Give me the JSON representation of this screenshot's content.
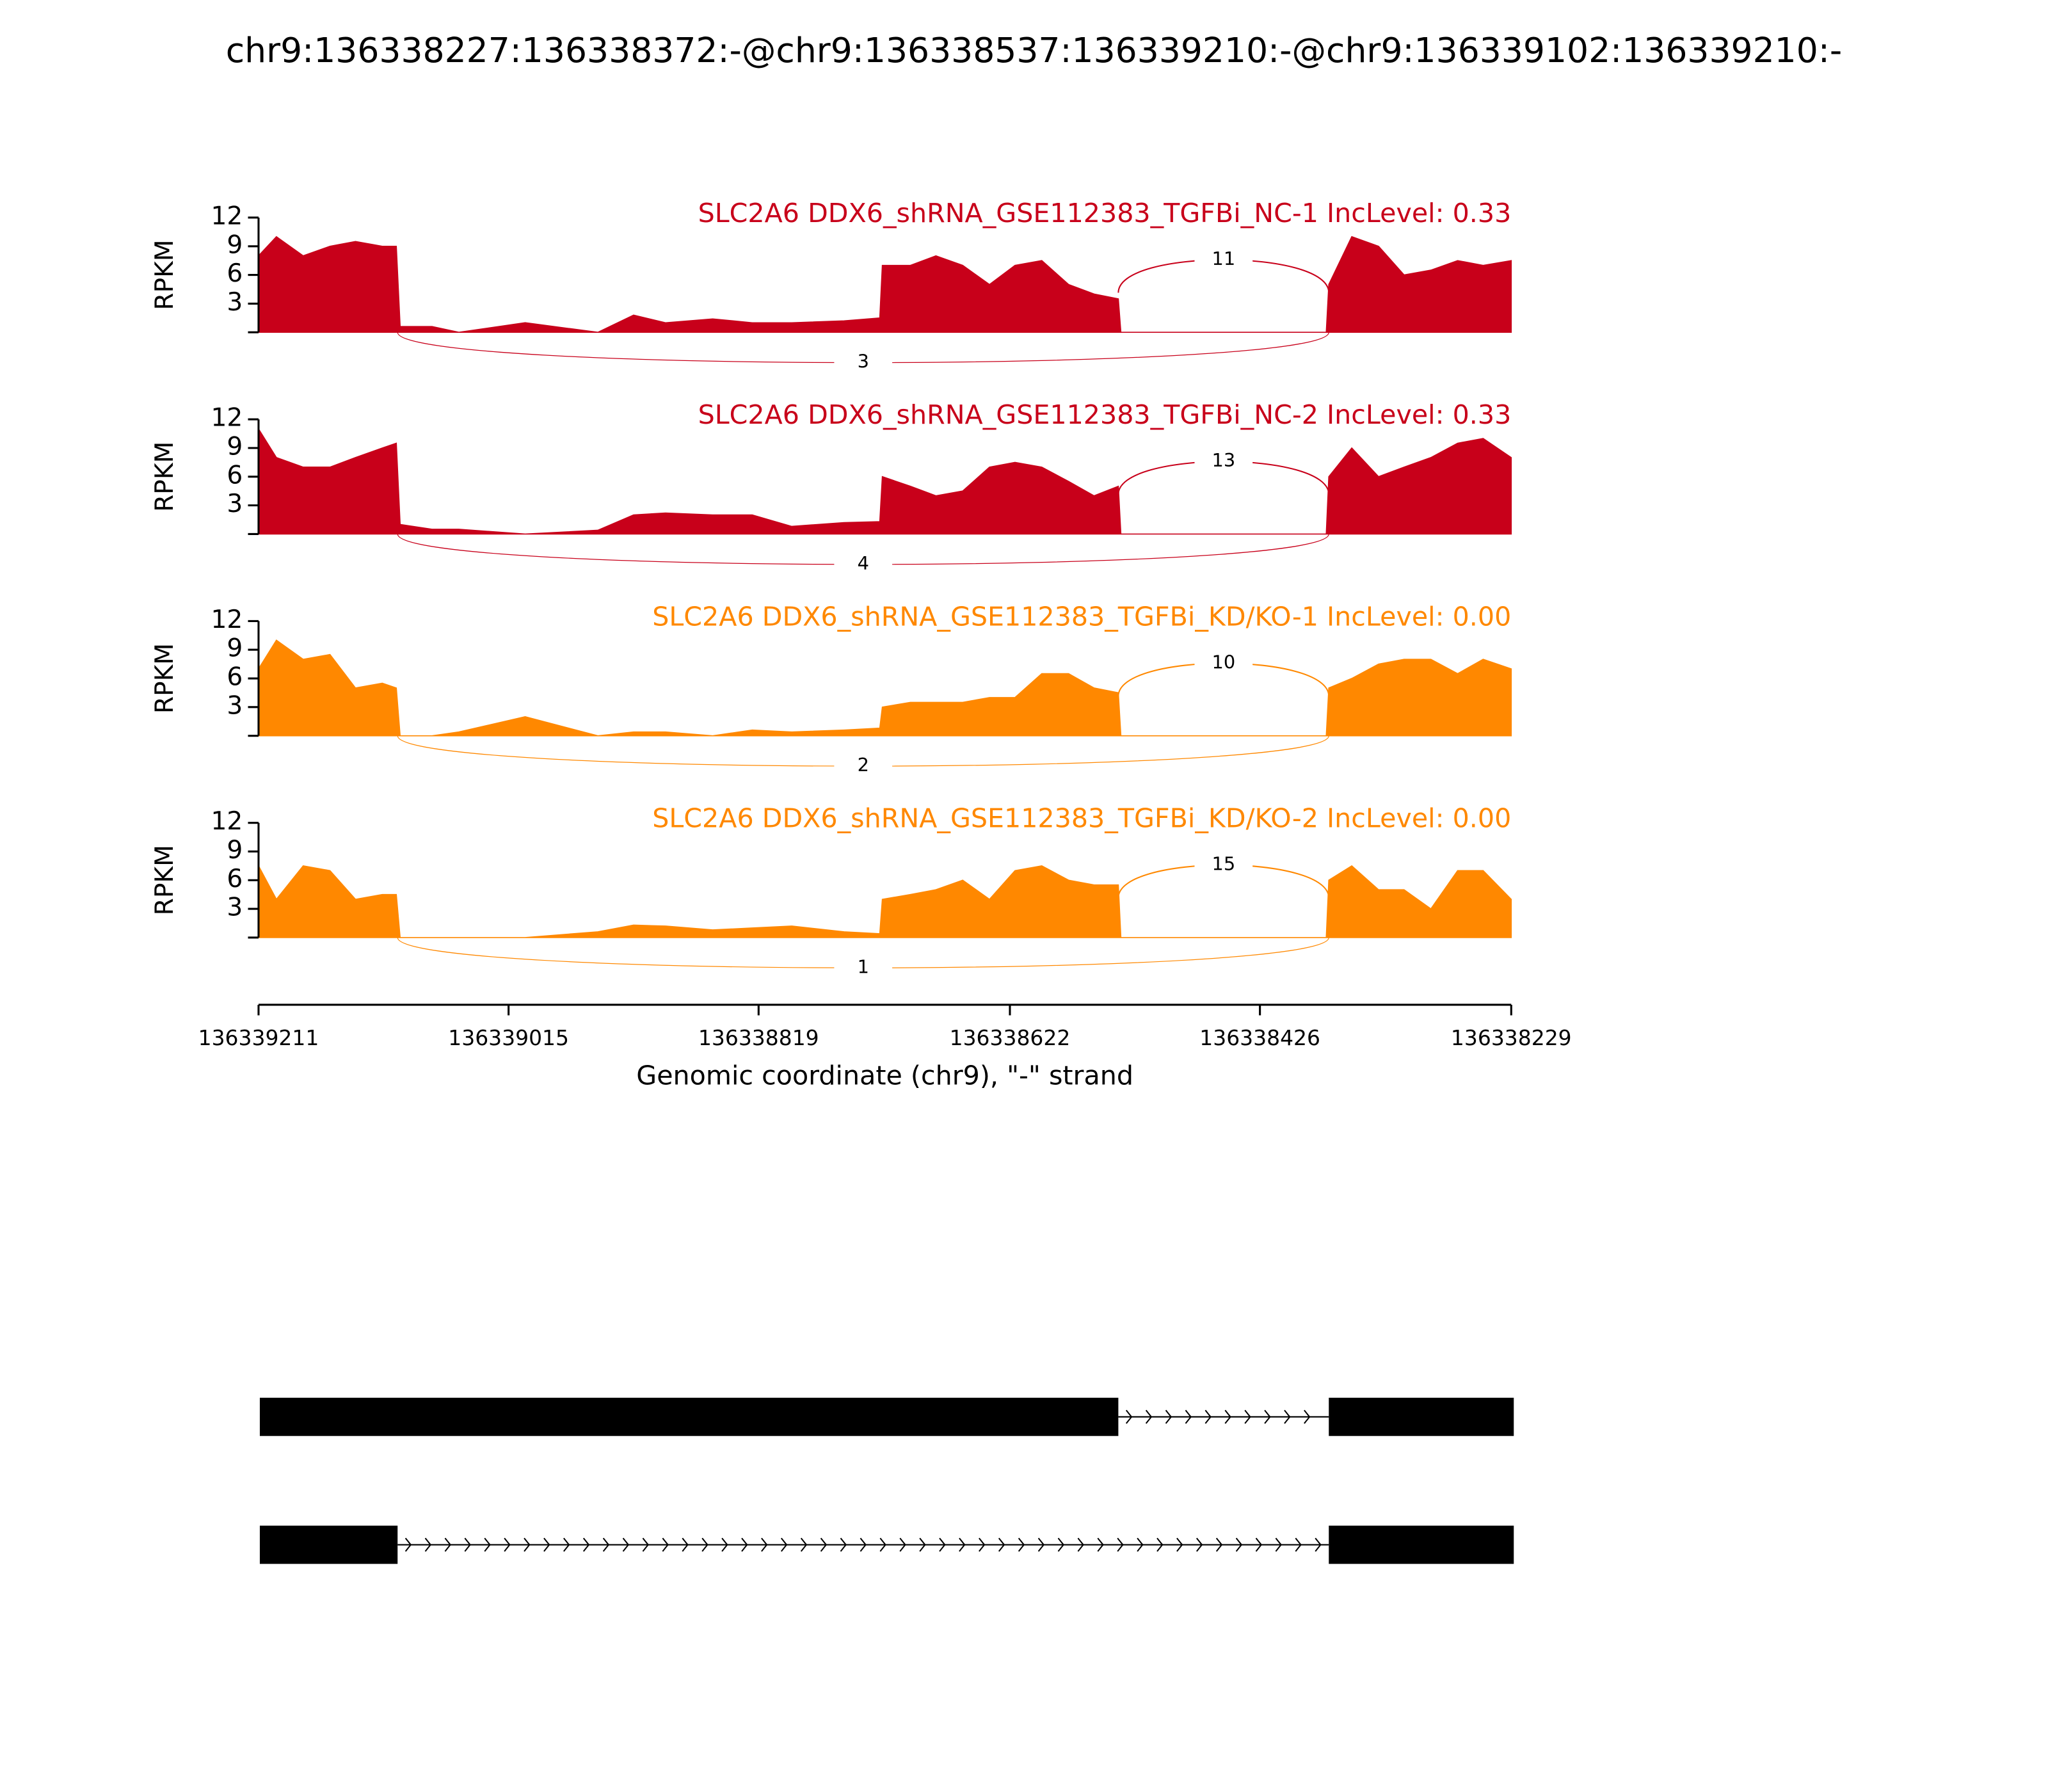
{
  "title": "chr9:136338227:136338372:-@chr9:136338537:136339210:-@chr9:136339102:136339210:-",
  "chart_data": [
    {
      "type": "area",
      "title": "SLC2A6 DDX6_shRNA_GSE112383_TGFBi_NC-1 IncLevel: 0.33",
      "ylabel": "RPKM",
      "color": "#c8001a",
      "xlim": [
        136339211,
        136338229
      ],
      "ylim": [
        0,
        12
      ],
      "yticks": [
        3,
        6,
        9,
        12
      ],
      "x": [
        136339211,
        136339197,
        136339176,
        136339155,
        136339135,
        136339114,
        136339103,
        136339100,
        136339075,
        136339054,
        136339002,
        136338945,
        136338917,
        136338892,
        136338855,
        136338824,
        136338793,
        136338752,
        136338724,
        136338722,
        136338700,
        136338680,
        136338659,
        136338638,
        136338618,
        136338597,
        136338576,
        136338556,
        136338537,
        136338535,
        136338374,
        136338372,
        136338354,
        136338333,
        136338313,
        136338292,
        136338271,
        136338251,
        136338229
      ],
      "values": [
        8,
        10,
        8,
        9,
        9.5,
        9,
        9,
        0.6,
        0.6,
        0,
        1,
        0,
        1.8,
        1,
        1.4,
        1,
        1,
        1.2,
        1.5,
        7,
        7,
        8,
        7,
        5,
        7,
        7.5,
        5,
        4,
        3.5,
        0,
        0,
        5,
        10,
        9,
        6,
        6.5,
        7.5,
        7,
        7.5
      ],
      "junctions": [
        {
          "start": 136338537,
          "end": 136338372,
          "count": 11
        },
        {
          "start": 136339102,
          "end": 136338372,
          "count": 3
        }
      ]
    },
    {
      "type": "area",
      "title": "SLC2A6 DDX6_shRNA_GSE112383_TGFBi_NC-2 IncLevel: 0.33",
      "ylabel": "RPKM",
      "color": "#c8001a",
      "xlim": [
        136339211,
        136338229
      ],
      "ylim": [
        0,
        12
      ],
      "yticks": [
        3,
        6,
        9,
        12
      ],
      "x": [
        136339211,
        136339197,
        136339176,
        136339155,
        136339135,
        136339114,
        136339103,
        136339100,
        136339075,
        136339054,
        136339002,
        136338945,
        136338917,
        136338892,
        136338855,
        136338824,
        136338793,
        136338752,
        136338724,
        136338722,
        136338700,
        136338680,
        136338659,
        136338638,
        136338618,
        136338597,
        136338576,
        136338556,
        136338537,
        136338535,
        136338374,
        136338372,
        136338354,
        136338333,
        136338313,
        136338292,
        136338271,
        136338251,
        136338229
      ],
      "values": [
        11,
        8,
        7,
        7,
        8,
        9,
        9.5,
        1,
        0.5,
        0.5,
        0,
        0.4,
        2,
        2.2,
        2,
        2,
        0.8,
        1.2,
        1.3,
        6,
        5,
        4,
        4.5,
        7,
        7.5,
        7,
        5.5,
        4,
        5,
        0,
        0,
        6,
        9,
        6,
        7,
        8,
        9.5,
        10,
        8
      ],
      "junctions": [
        {
          "start": 136338537,
          "end": 136338372,
          "count": 13
        },
        {
          "start": 136339102,
          "end": 136338372,
          "count": 4
        }
      ]
    },
    {
      "type": "area",
      "title": "SLC2A6 DDX6_shRNA_GSE112383_TGFBi_KD/KO-1 IncLevel: 0.00",
      "ylabel": "RPKM",
      "color": "#ff8800",
      "xlim": [
        136339211,
        136338229
      ],
      "ylim": [
        0,
        12
      ],
      "yticks": [
        3,
        6,
        9,
        12
      ],
      "x": [
        136339211,
        136339197,
        136339176,
        136339155,
        136339135,
        136339114,
        136339103,
        136339100,
        136339075,
        136339054,
        136339002,
        136338945,
        136338917,
        136338892,
        136338855,
        136338824,
        136338793,
        136338752,
        136338724,
        136338722,
        136338700,
        136338680,
        136338659,
        136338638,
        136338618,
        136338597,
        136338576,
        136338556,
        136338537,
        136338535,
        136338374,
        136338372,
        136338354,
        136338333,
        136338313,
        136338292,
        136338271,
        136338251,
        136338229
      ],
      "values": [
        7,
        10,
        8,
        8.5,
        5,
        5.5,
        5,
        0,
        0,
        0.4,
        2,
        0,
        0.4,
        0.4,
        0,
        0.6,
        0.4,
        0.6,
        0.8,
        3,
        3.5,
        3.5,
        3.5,
        4,
        4,
        6.5,
        6.5,
        5,
        4.5,
        0,
        0,
        5,
        6,
        7.5,
        8,
        8,
        6.5,
        8,
        7
      ],
      "junctions": [
        {
          "start": 136338537,
          "end": 136338372,
          "count": 10
        },
        {
          "start": 136339102,
          "end": 136338372,
          "count": 2
        }
      ]
    },
    {
      "type": "area",
      "title": "SLC2A6 DDX6_shRNA_GSE112383_TGFBi_KD/KO-2 IncLevel: 0.00",
      "ylabel": "RPKM",
      "color": "#ff8800",
      "xlim": [
        136339211,
        136338229
      ],
      "ylim": [
        0,
        12
      ],
      "yticks": [
        3,
        6,
        9,
        12
      ],
      "xticks": [
        136339211,
        136339015,
        136338819,
        136338622,
        136338426,
        136338229
      ],
      "xlabel": "Genomic coordinate (chr9), \"-\" strand",
      "x": [
        136339211,
        136339197,
        136339176,
        136339155,
        136339135,
        136339114,
        136339103,
        136339100,
        136339075,
        136339054,
        136339002,
        136338945,
        136338917,
        136338892,
        136338855,
        136338824,
        136338793,
        136338752,
        136338724,
        136338722,
        136338700,
        136338680,
        136338659,
        136338638,
        136338618,
        136338597,
        136338576,
        136338556,
        136338537,
        136338535,
        136338374,
        136338372,
        136338354,
        136338333,
        136338313,
        136338292,
        136338271,
        136338251,
        136338229
      ],
      "values": [
        7.5,
        4,
        7.5,
        7,
        4,
        4.5,
        4.5,
        0,
        0,
        0,
        0,
        0.6,
        1.3,
        1.2,
        0.8,
        1,
        1.2,
        0.6,
        0.4,
        4,
        4.5,
        5,
        6,
        4,
        7,
        7.5,
        6,
        5.5,
        5.5,
        0,
        0,
        6,
        7.5,
        5,
        5,
        3,
        7,
        7,
        4
      ],
      "junctions": [
        {
          "start": 136338537,
          "end": 136338372,
          "count": 15
        },
        {
          "start": 136339102,
          "end": 136338372,
          "count": 1
        }
      ]
    },
    {
      "type": "transcripts",
      "xlim": [
        136339211,
        136338229
      ],
      "transcripts": [
        {
          "exons": [
            [
              136339210,
              136338537
            ],
            [
              136338372,
              136338227
            ]
          ]
        },
        {
          "exons": [
            [
              136339210,
              136339102
            ],
            [
              136338372,
              136338227
            ]
          ]
        }
      ]
    }
  ]
}
